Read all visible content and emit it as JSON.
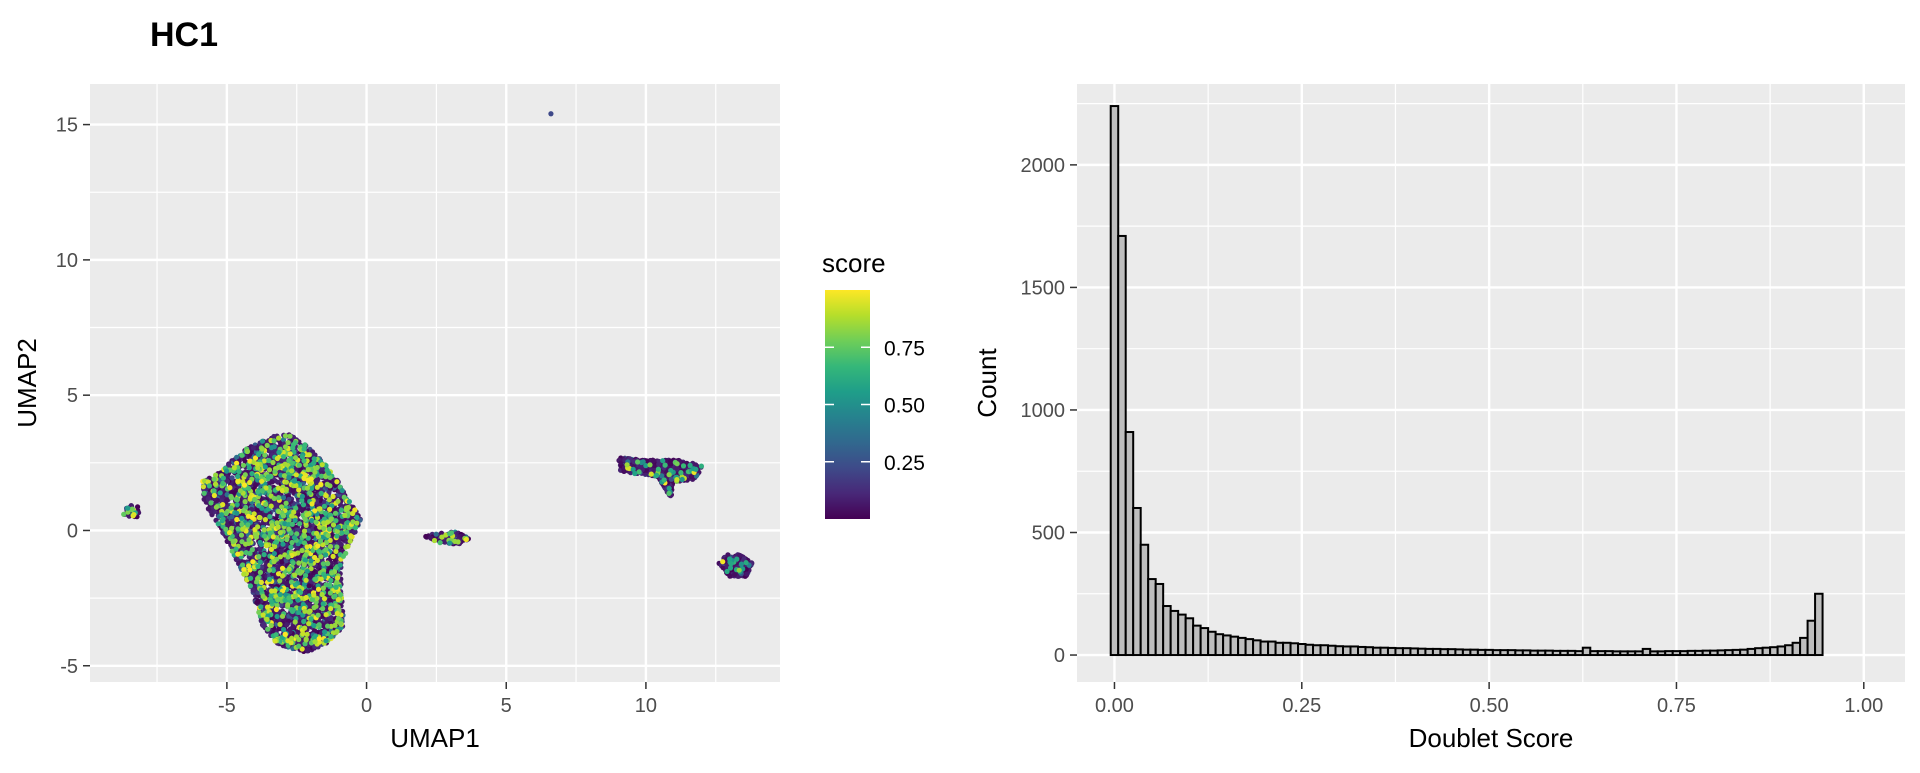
{
  "title": "HC1",
  "colors": {
    "panel_bg": "#ebebeb",
    "grid_major": "#ffffff",
    "hist_fill": "#bebebe",
    "hist_stroke": "#000000",
    "viridis": [
      "#440154",
      "#482878",
      "#3e4a89",
      "#31688e",
      "#26828e",
      "#1f9e89",
      "#35b779",
      "#6ece58",
      "#b5de2b",
      "#fde725"
    ]
  },
  "chart_data": [
    {
      "type": "scatter",
      "xlabel": "UMAP1",
      "ylabel": "UMAP2",
      "xlim": [
        -9.9,
        14.8
      ],
      "ylim": [
        -5.6,
        16.5
      ],
      "xticks": [
        -5,
        0,
        5,
        10
      ],
      "yticks": [
        -5,
        0,
        5,
        10,
        15
      ],
      "xtick_labels": [
        "-5",
        "0",
        "5",
        "10"
      ],
      "ytick_labels": [
        "-5",
        "0",
        "5",
        "10",
        "15"
      ],
      "grid": true,
      "color_variable": "score",
      "legend": {
        "title": "score",
        "placement": "right",
        "breaks": [
          0.25,
          0.5,
          0.75
        ],
        "labels": [
          "0.25",
          "0.50",
          "0.75"
        ],
        "range": [
          0.0,
          1.0
        ]
      },
      "clusters": [
        {
          "region": "main",
          "points": [
            [
              -3.6,
              3.4
            ],
            [
              -2.9,
              3.6
            ],
            [
              -2.3,
              3.3
            ],
            [
              -1.6,
              2.6
            ],
            [
              -1.0,
              1.8
            ],
            [
              -0.5,
              1.0
            ],
            [
              -0.2,
              0.4
            ],
            [
              -0.5,
              -0.3
            ],
            [
              -0.9,
              -1.2
            ],
            [
              -0.9,
              -2.4
            ],
            [
              -0.8,
              -3.5
            ],
            [
              -1.4,
              -4.2
            ],
            [
              -2.2,
              -4.5
            ],
            [
              -3.2,
              -4.2
            ],
            [
              -3.8,
              -3.4
            ],
            [
              -4.1,
              -2.2
            ],
            [
              -4.7,
              -1.0
            ],
            [
              -5.3,
              0.2
            ],
            [
              -5.8,
              1.0
            ],
            [
              -5.9,
              1.8
            ],
            [
              -5.2,
              2.2
            ],
            [
              -4.5,
              2.9
            ]
          ]
        },
        {
          "region": "left-small",
          "points": [
            [
              -8.7,
              0.6
            ],
            [
              -8.6,
              0.9
            ],
            [
              -8.3,
              1.0
            ],
            [
              -8.1,
              0.8
            ],
            [
              -8.2,
              0.5
            ],
            [
              -8.5,
              0.5
            ]
          ]
        },
        {
          "region": "middle-small",
          "points": [
            [
              2.0,
              -0.2
            ],
            [
              2.6,
              -0.1
            ],
            [
              3.2,
              -0.05
            ],
            [
              3.7,
              -0.3
            ],
            [
              3.3,
              -0.5
            ],
            [
              2.6,
              -0.45
            ]
          ]
        },
        {
          "region": "right-top",
          "points": [
            [
              9.0,
              2.7
            ],
            [
              10.0,
              2.6
            ],
            [
              11.2,
              2.6
            ],
            [
              12.0,
              2.4
            ],
            [
              11.8,
              1.9
            ],
            [
              11.0,
              1.8
            ],
            [
              10.9,
              1.2
            ],
            [
              10.7,
              1.5
            ],
            [
              10.4,
              2.0
            ],
            [
              9.5,
              2.1
            ],
            [
              9.1,
              2.2
            ]
          ]
        },
        {
          "region": "right-bottom",
          "points": [
            [
              12.6,
              -1.2
            ],
            [
              12.9,
              -0.9
            ],
            [
              13.4,
              -0.9
            ],
            [
              13.8,
              -1.2
            ],
            [
              13.6,
              -1.7
            ],
            [
              13.0,
              -1.7
            ]
          ]
        },
        {
          "region": "outlier",
          "points": [
            [
              6.6,
              15.4
            ]
          ]
        }
      ]
    },
    {
      "type": "bar",
      "subtype": "histogram",
      "xlabel": "Doublet Score",
      "ylabel": "Count",
      "xlim": [
        -0.05,
        1.055
      ],
      "ylim": [
        -110,
        2330
      ],
      "xticks": [
        0,
        0.25,
        0.5,
        0.75,
        1
      ],
      "yticks": [
        0,
        500,
        1000,
        1500,
        2000
      ],
      "xtick_labels": [
        "0.00",
        "0.25",
        "0.50",
        "0.75",
        "1.00"
      ],
      "ytick_labels": [
        "0",
        "500",
        "1000",
        "1500",
        "2000"
      ],
      "grid": true,
      "bin_start": -0.005,
      "bin_width": 0.01,
      "values": [
        2240,
        1710,
        910,
        600,
        450,
        310,
        290,
        200,
        180,
        165,
        150,
        120,
        110,
        95,
        85,
        80,
        75,
        70,
        65,
        60,
        55,
        55,
        50,
        50,
        48,
        45,
        42,
        40,
        40,
        38,
        36,
        35,
        35,
        33,
        32,
        30,
        30,
        29,
        28,
        28,
        27,
        26,
        25,
        25,
        24,
        24,
        23,
        22,
        22,
        21,
        21,
        20,
        20,
        20,
        19,
        19,
        18,
        18,
        18,
        17,
        17,
        17,
        16,
        30,
        16,
        16,
        16,
        15,
        15,
        15,
        15,
        25,
        15,
        15,
        16,
        16,
        16,
        17,
        17,
        18,
        18,
        19,
        20,
        21,
        22,
        25,
        28,
        30,
        32,
        35,
        40,
        50,
        70,
        140,
        250
      ]
    }
  ]
}
